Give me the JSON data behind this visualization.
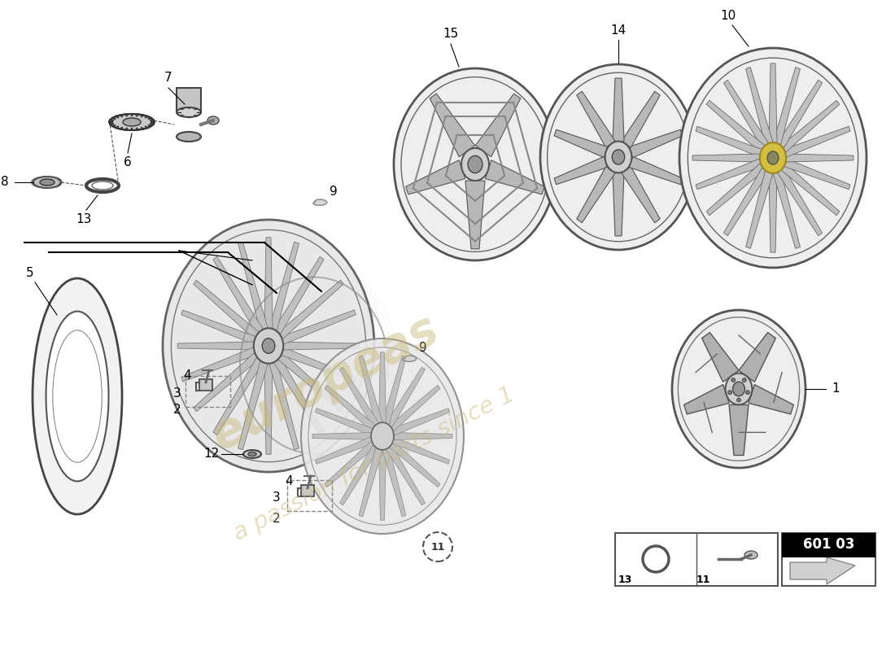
{
  "bg_color": "#ffffff",
  "page_code": "601 03",
  "watermark_color": "#c8b878",
  "label_color": "#000000",
  "line_color": "#000000",
  "wheel_rim_color": "#b0b0b0",
  "spoke_dark": "#707070",
  "spoke_light": "#d8d8d8",
  "hub_color": "#c8c8c8",
  "rim_border": "#555555",
  "tire_color": "#f0f0f0",
  "yellow_hub": "#d4c040"
}
